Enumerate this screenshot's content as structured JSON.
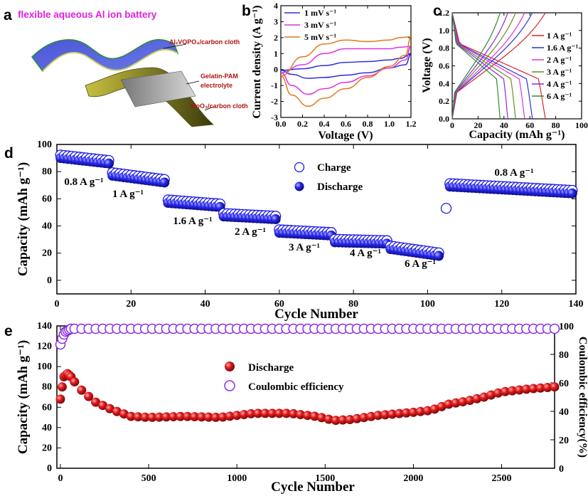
{
  "panel_labels": [
    "a",
    "b",
    "c",
    "d",
    "e"
  ],
  "schematic": {
    "title": "flexible aqueous Al ion battery",
    "cathode": "AlₓVOPO₄/carbon cloth",
    "electrolyte_line1": "Gelatin-PAM",
    "electrolyte_line2": "electrolyte",
    "anode": "MoO₃/carbon cloth"
  },
  "colors": {
    "blue": "#2f2fd8",
    "magenta": "#e030e0",
    "orange": "#e07a1f",
    "red": "#d8262b",
    "green": "#2e8b2e",
    "olive": "#6b8e23",
    "purple": "#8a2be2",
    "sphere_blue": "#1e1ee8",
    "sphere_red": "#e41a1c"
  },
  "chart_data": [
    {
      "panel": "b",
      "type": "line",
      "xlabel": "Voltage (V)",
      "ylabel": "Current density (A g⁻¹)",
      "xlim": [
        0,
        1.2
      ],
      "ylim": [
        -3,
        4
      ],
      "xticks": [
        "0.0",
        "0.2",
        "0.4",
        "0.6",
        "0.8",
        "1.0",
        "1.2"
      ],
      "yticks": [
        "-3",
        "-2",
        "-1",
        "0",
        "1",
        "2",
        "3",
        "4"
      ],
      "legend_position": "top-left",
      "series": [
        {
          "name": "1 mV s⁻¹",
          "color": "blue",
          "upper": [
            [
              0,
              -0.05
            ],
            [
              0.2,
              0.05
            ],
            [
              0.4,
              0.25
            ],
            [
              0.6,
              0.45
            ],
            [
              0.8,
              0.5
            ],
            [
              1.0,
              0.6
            ],
            [
              1.1,
              0.7
            ],
            [
              1.2,
              0.95
            ]
          ],
          "lower": [
            [
              1.2,
              0.95
            ],
            [
              1.15,
              0.3
            ],
            [
              1.0,
              0.1
            ],
            [
              0.8,
              -0.2
            ],
            [
              0.6,
              -0.35
            ],
            [
              0.4,
              -0.5
            ],
            [
              0.25,
              -0.55
            ],
            [
              0.1,
              -0.3
            ],
            [
              0,
              -0.05
            ]
          ]
        },
        {
          "name": "3 mV s⁻¹",
          "color": "magenta",
          "upper": [
            [
              0,
              -0.2
            ],
            [
              0.2,
              0.3
            ],
            [
              0.4,
              1.0
            ],
            [
              0.6,
              1.3
            ],
            [
              0.8,
              1.3
            ],
            [
              1.0,
              1.3
            ],
            [
              1.1,
              1.4
            ],
            [
              1.2,
              1.45
            ]
          ],
          "lower": [
            [
              1.2,
              1.45
            ],
            [
              1.15,
              0.6
            ],
            [
              1.0,
              0.1
            ],
            [
              0.8,
              -0.4
            ],
            [
              0.6,
              -0.8
            ],
            [
              0.4,
              -1.2
            ],
            [
              0.25,
              -1.55
            ],
            [
              0.1,
              -1.0
            ],
            [
              0,
              -0.2
            ]
          ]
        },
        {
          "name": "5 mV s⁻¹",
          "color": "orange",
          "upper": [
            [
              0,
              -0.4
            ],
            [
              0.2,
              0.8
            ],
            [
              0.4,
              1.6
            ],
            [
              0.6,
              1.85
            ],
            [
              0.8,
              1.75
            ],
            [
              1.0,
              1.85
            ],
            [
              1.1,
              2.0
            ],
            [
              1.2,
              2.05
            ]
          ],
          "lower": [
            [
              1.2,
              2.05
            ],
            [
              1.15,
              0.9
            ],
            [
              1.0,
              0.2
            ],
            [
              0.8,
              -0.5
            ],
            [
              0.6,
              -1.2
            ],
            [
              0.4,
              -1.8
            ],
            [
              0.25,
              -2.3
            ],
            [
              0.1,
              -1.6
            ],
            [
              0,
              -0.4
            ]
          ]
        }
      ]
    },
    {
      "panel": "c",
      "type": "line",
      "xlabel": "Capacity (mAh g⁻¹)",
      "ylabel": "Voltage (V)",
      "xlim": [
        0,
        100
      ],
      "ylim": [
        0,
        1.2
      ],
      "xticks": [
        "0",
        "20",
        "40",
        "60",
        "80",
        "100"
      ],
      "yticks": [
        "0.0",
        "0.2",
        "0.4",
        "0.6",
        "0.8",
        "1.0",
        "1.2"
      ],
      "legend_position": "right",
      "series": [
        {
          "name": "1 A g⁻¹",
          "color": "red",
          "capacity": 72
        },
        {
          "name": "1.6 A g⁻¹",
          "color": "blue",
          "capacity": 62
        },
        {
          "name": "2 A g⁻¹",
          "color": "magenta",
          "capacity": 56
        },
        {
          "name": "3 A g⁻¹",
          "color": "olive",
          "capacity": 49
        },
        {
          "name": "4 A g⁻¹",
          "color": "purple",
          "capacity": 43
        },
        {
          "name": "6 A g⁻¹",
          "color": "green",
          "capacity": 37
        }
      ]
    },
    {
      "panel": "d",
      "type": "scatter",
      "xlabel": "Cycle Number",
      "ylabel": "Capacity (mAh g⁻¹)",
      "xlim": [
        0,
        140
      ],
      "ylim": [
        -10,
        100
      ],
      "xticks": [
        "0",
        "20",
        "40",
        "60",
        "80",
        "100",
        "120",
        "140"
      ],
      "yticks": [
        "0",
        "20",
        "40",
        "60",
        "80",
        "100"
      ],
      "legend": [
        "Charge",
        "Discharge"
      ],
      "rate_labels": [
        "0.8 A g⁻¹",
        "1 A g⁻¹",
        "1.6 A g⁻¹",
        "2 A g⁻¹",
        "3 A g⁻¹",
        "4 A g⁻¹",
        "6 A g⁻¹",
        "0.8 A g⁻¹"
      ],
      "segments": [
        {
          "rate": "0.8 A g⁻¹",
          "from": 1,
          "to": 14,
          "start": 90,
          "end": 86
        },
        {
          "rate": "1 A g⁻¹",
          "from": 15,
          "to": 29,
          "start": 77,
          "end": 72
        },
        {
          "rate": "1.6 A g⁻¹",
          "from": 30,
          "to": 44,
          "start": 57,
          "end": 54
        },
        {
          "rate": "2 A g⁻¹",
          "from": 45,
          "to": 59,
          "start": 47,
          "end": 45
        },
        {
          "rate": "3 A g⁻¹",
          "from": 60,
          "to": 74,
          "start": 35,
          "end": 33
        },
        {
          "rate": "4 A g⁻¹",
          "from": 75,
          "to": 89,
          "start": 28,
          "end": 27
        },
        {
          "rate": "6 A g⁻¹",
          "from": 90,
          "to": 103,
          "start": 23,
          "end": 18
        },
        {
          "rate": "0.8 A g⁻¹",
          "from": 106,
          "to": 139,
          "start": 69,
          "end": 64
        }
      ],
      "outlier": {
        "cycle": 105,
        "charge": 53
      }
    },
    {
      "panel": "e",
      "type": "scatter",
      "xlabel": "Cycle Number",
      "ylabel": "Capacity (mAh g⁻¹)",
      "y2label": "Coulombic efficiency(%)",
      "xlim": [
        -20,
        2800
      ],
      "ylim": [
        0,
        140
      ],
      "y2lim": [
        0,
        100
      ],
      "xticks": [
        "0",
        "500",
        "1000",
        "1500",
        "2000",
        "2500"
      ],
      "yticks": [
        "0",
        "20",
        "40",
        "60",
        "80",
        "100",
        "120",
        "140"
      ],
      "y2ticks": [
        "0",
        "20",
        "40",
        "60",
        "80",
        "100"
      ],
      "legend": [
        "Discharge",
        "Coulombic efficiency"
      ],
      "discharge": [
        [
          0,
          68
        ],
        [
          10,
          80
        ],
        [
          20,
          90
        ],
        [
          40,
          93
        ],
        [
          60,
          90
        ],
        [
          100,
          80
        ],
        [
          150,
          72
        ],
        [
          200,
          65
        ],
        [
          300,
          57
        ],
        [
          400,
          51
        ],
        [
          500,
          50
        ],
        [
          700,
          51
        ],
        [
          900,
          50
        ],
        [
          1100,
          54
        ],
        [
          1300,
          54
        ],
        [
          1450,
          51
        ],
        [
          1550,
          47
        ],
        [
          1650,
          48
        ],
        [
          1800,
          52
        ],
        [
          2000,
          55
        ],
        [
          2100,
          57
        ],
        [
          2200,
          63
        ],
        [
          2300,
          66
        ],
        [
          2400,
          70
        ],
        [
          2500,
          75
        ],
        [
          2650,
          78
        ],
        [
          2800,
          80
        ]
      ],
      "coulombic": [
        [
          0,
          87
        ],
        [
          15,
          93
        ],
        [
          30,
          96
        ],
        [
          60,
          98
        ],
        [
          2800,
          98
        ]
      ]
    }
  ]
}
